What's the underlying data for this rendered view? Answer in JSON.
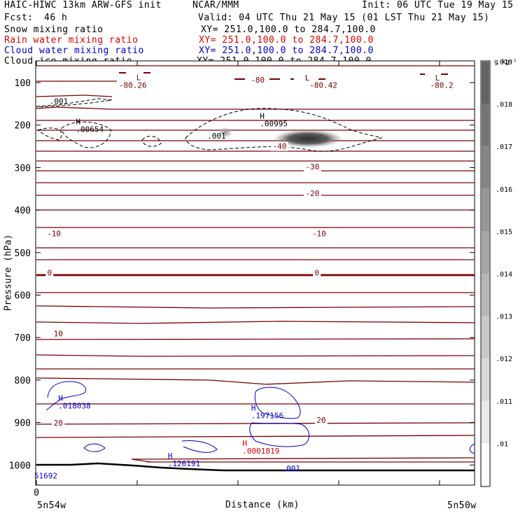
{
  "header": {
    "title_left": "HAIC-HIWC 13km ARW-GFS init",
    "org": "NCAR/MMM",
    "init": "Init: 06 UTC Tue 19 May 15",
    "fcst_label": "Fcst:",
    "fcst_value": "46 h",
    "valid": "Valid: 04 UTC Thu 21 May 15 (01 LST Thu 21 May 15)"
  },
  "legend": [
    {
      "name": "Snow mixing ratio",
      "xy": "XY= 251.0,100.0 to 284.7,100.0",
      "color": "#000000"
    },
    {
      "name": "Rain water mixing ratio",
      "xy": "XY= 251.0,100.0 to 284.7,100.0",
      "color": "#e00000"
    },
    {
      "name": "Cloud water mixing ratio",
      "xy": "XY= 251.0,100.0 to 284.7,100.0",
      "color": "#0000cc"
    },
    {
      "name": "Cloud ice mixing ratio",
      "xy": "XY= 251.0,100.0 to 284.7,100.0",
      "color": "#000000"
    }
  ],
  "colorbar": {
    "units": "g kg⁻¹",
    "ticks": [
      ".01",
      ".011",
      ".012",
      ".013",
      ".014",
      ".015",
      ".016",
      ".017",
      ".018",
      ".019"
    ]
  },
  "chart_data": {
    "type": "contour",
    "ylabel": "Pressure (hPa)",
    "xlabel": "Distance (km)",
    "y_ticks": [
      "100",
      "200",
      "300",
      "400",
      "500",
      "600",
      "700",
      "800",
      "900",
      "1000"
    ],
    "x_ticks": [
      {
        "label": "0",
        "dist": 0
      }
    ],
    "x_end_labels": [
      "5n54w",
      "5n50w"
    ],
    "temperature_labels": [
      {
        "text": "-80.26",
        "dist": 0.22,
        "p": 112
      },
      {
        "text": "-80",
        "dist": 0.505,
        "p": 100
      },
      {
        "text": "-80.42",
        "dist": 0.655,
        "p": 112
      },
      {
        "text": "-80.2",
        "dist": 0.925,
        "p": 112
      },
      {
        "text": "-40",
        "dist": 0.555,
        "p": 256
      },
      {
        "text": "-30",
        "dist": 0.63,
        "p": 304
      },
      {
        "text": "-20",
        "dist": 0.63,
        "p": 367
      },
      {
        "text": "-10",
        "dist": 0.04,
        "p": 462
      },
      {
        "text": "-10",
        "dist": 0.645,
        "p": 462
      },
      {
        "text": "0",
        "dist": 0.03,
        "p": 554
      },
      {
        "text": "0",
        "dist": 0.64,
        "p": 554
      },
      {
        "text": "10",
        "dist": 0.05,
        "p": 697
      },
      {
        "text": "20",
        "dist": 0.05,
        "p": 907
      },
      {
        "text": "20",
        "dist": 0.65,
        "p": 901
      }
    ],
    "extrema_labels": [
      {
        "marker": "L",
        "dist": 0.228,
        "p": 94
      },
      {
        "marker": "L",
        "dist": 0.613,
        "p": 95
      },
      {
        "marker": "L",
        "dist": 0.91,
        "p": 95
      },
      {
        "marker": "H",
        "value": ".00654",
        "dist": 0.09,
        "p": 198,
        "color": "#000000"
      },
      {
        "marker": "H",
        "value": ".00995",
        "dist": 0.51,
        "p": 185,
        "color": "#000000"
      },
      {
        "marker": "H",
        "value": ".018038",
        "dist": 0.05,
        "p": 849,
        "color": "#0000cc"
      },
      {
        "marker": "H",
        "value": ".197156",
        "dist": 0.49,
        "p": 872,
        "color": "#0000cc"
      },
      {
        "marker": "H",
        "value": ".0001819",
        "dist": 0.47,
        "p": 955,
        "color": "#e00000"
      },
      {
        "marker": "H",
        "value": ".126191",
        "dist": 0.3,
        "p": 985,
        "color": "#0000cc"
      }
    ],
    "contour_labels": [
      {
        "text": ".001",
        "dist": 0.03,
        "p": 150,
        "color": "#000000"
      },
      {
        "text": ".001",
        "dist": 0.39,
        "p": 232,
        "color": "#000000"
      },
      {
        "text": ".001",
        "dist": 0.56,
        "p": 1014,
        "color": "#0000cc"
      },
      {
        "text": "51692",
        "dist": -0.005,
        "p": 1032,
        "color": "#0000cc"
      }
    ]
  }
}
